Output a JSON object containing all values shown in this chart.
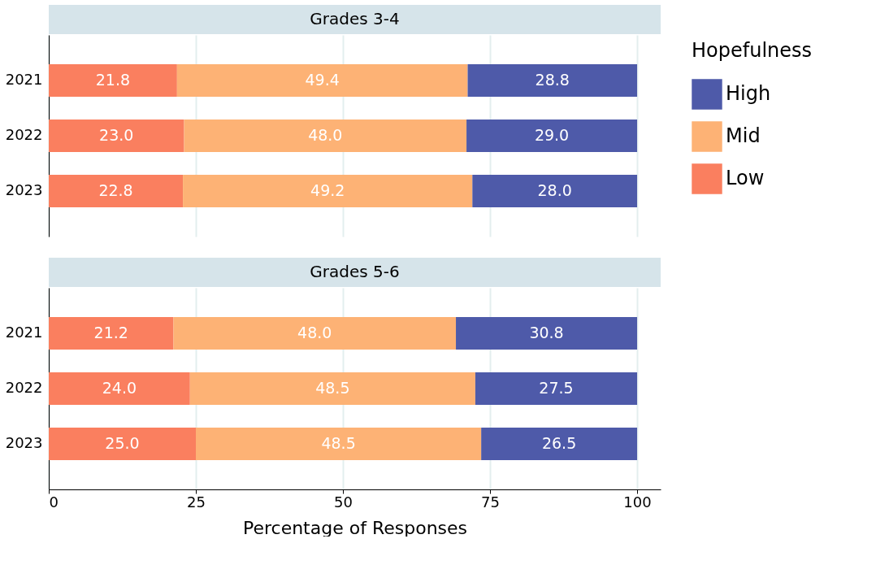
{
  "chart_data": [
    {
      "type": "bar",
      "orientation": "horizontal",
      "stacked": true,
      "title": "Grades 3-4",
      "legend_title": "Hopefulness",
      "legend": "right",
      "grid": "x",
      "tick_labels": "y",
      "categories": [
        "2021",
        "2022",
        "2023"
      ],
      "xticks": [
        0,
        25,
        50,
        75,
        100
      ],
      "series": [
        {
          "name": "Low",
          "color": "#fa7f5f",
          "values": [
            21.8,
            23.0,
            22.8
          ],
          "value_labels": [
            "21.8",
            "23.0",
            "22.8"
          ]
        },
        {
          "name": "Mid",
          "color": "#fdb275",
          "values": [
            49.4,
            48.0,
            49.2
          ],
          "value_labels": [
            "49.4",
            "48.0",
            "49.2"
          ]
        },
        {
          "name": "High",
          "color": "#4e5aa9",
          "values": [
            28.8,
            29.0,
            28.0
          ],
          "value_labels": [
            "28.8",
            "29.0",
            "28.0"
          ]
        }
      ]
    },
    {
      "type": "bar",
      "orientation": "horizontal",
      "stacked": true,
      "title": "Grades 5-6",
      "xlabel": "Percentage of Responses",
      "grid": "x",
      "categories": [
        "2021",
        "2022",
        "2023"
      ],
      "xlim": [
        0,
        104
      ],
      "xticks": [
        0,
        25,
        50,
        75,
        100
      ],
      "series": [
        {
          "name": "Low",
          "color": "#fa7f5f",
          "values": [
            21.2,
            24.0,
            25.0
          ],
          "value_labels": [
            "21.2",
            "24.0",
            "25.0"
          ]
        },
        {
          "name": "Mid",
          "color": "#fdb275",
          "values": [
            48.0,
            48.5,
            48.5
          ],
          "value_labels": [
            "48.0",
            "48.5",
            "48.5"
          ]
        },
        {
          "name": "High",
          "color": "#4e5aa9",
          "values": [
            30.8,
            27.5,
            26.5
          ],
          "value_labels": [
            "30.8",
            "27.5",
            "26.5"
          ]
        }
      ]
    }
  ]
}
